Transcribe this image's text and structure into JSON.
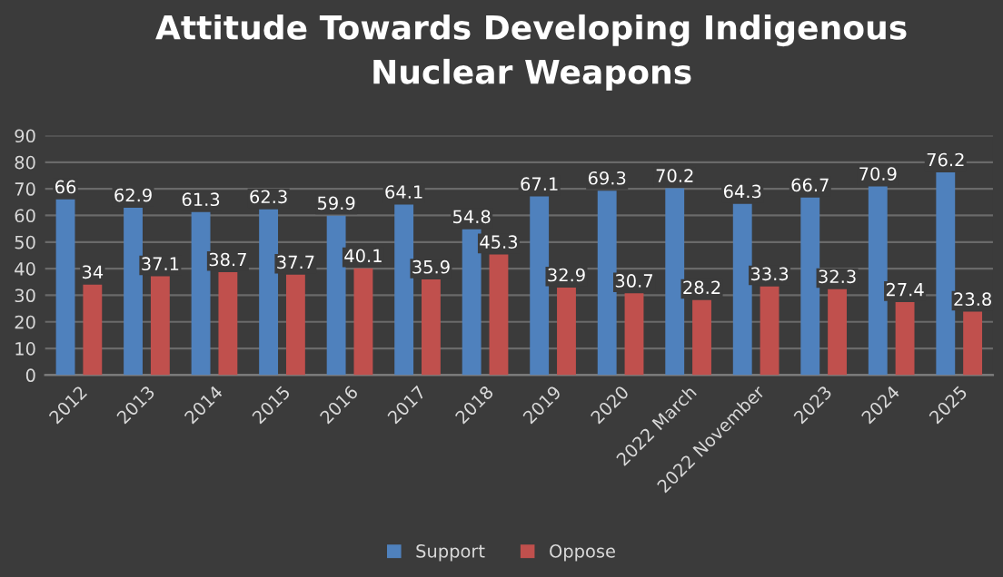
{
  "chart_data": {
    "type": "bar",
    "title": "Attitude Towards Developing Indigenous\nNuclear Weapons",
    "categories": [
      "2012",
      "2013",
      "2014",
      "2015",
      "2016",
      "2017",
      "2018",
      "2019",
      "2020",
      "2022 March",
      "2022 November",
      "2023",
      "2024",
      "2025"
    ],
    "series": [
      {
        "name": "Support",
        "color": "#4f81bd",
        "values": [
          66,
          62.9,
          61.3,
          62.3,
          59.9,
          64.1,
          54.8,
          67.1,
          69.3,
          70.2,
          64.3,
          66.7,
          70.9,
          76.2
        ]
      },
      {
        "name": "Oppose",
        "color": "#c0504d",
        "values": [
          34,
          37.1,
          38.7,
          37.7,
          40.1,
          35.9,
          45.3,
          32.9,
          30.7,
          28.2,
          33.3,
          32.3,
          27.4,
          23.8
        ]
      }
    ],
    "ylim": [
      0,
      90
    ],
    "yticks": [
      0,
      10,
      20,
      30,
      40,
      50,
      60,
      70,
      80,
      90
    ],
    "grid": "y",
    "legend": "bottom",
    "data_labels": true
  }
}
